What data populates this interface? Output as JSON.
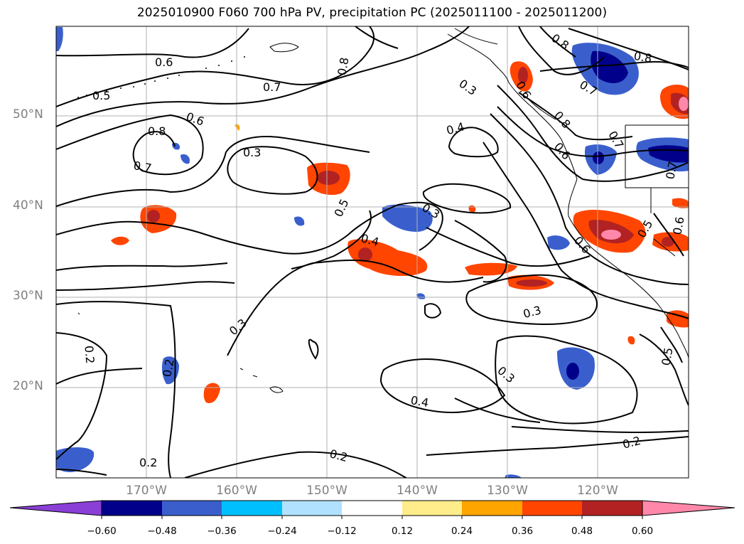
{
  "title": "2025010900 F060 700 hPa PV, precipitation PC (2025011100 - 2025011200)",
  "map": {
    "lat_labels": [
      "50°N",
      "40°N",
      "30°N",
      "20°N"
    ],
    "lon_labels": [
      "170°W",
      "160°W",
      "150°W",
      "140°W",
      "130°W",
      "120°W"
    ],
    "pv_contour_labels": [
      "0.6",
      "0.5",
      "0.7",
      "0.8",
      "0.6",
      "0.8",
      "0.7",
      "0.3",
      "0.8",
      "0.3",
      "0.4",
      "0.5",
      "0.3",
      "0.4",
      "0.8",
      "0.7",
      "0.8",
      "0.6",
      "0.7",
      "0.6",
      "0.6",
      "0.5",
      "0.3",
      "0.2",
      "0.2",
      "0.3",
      "0.3",
      "0.4",
      "0.5",
      "0.2",
      "0.2",
      "0.2",
      "0.7",
      "0.6"
    ]
  },
  "colorbar": {
    "ticks": [
      "−0.60",
      "−0.48",
      "−0.36",
      "−0.24",
      "−0.12",
      "0.12",
      "0.24",
      "0.36",
      "0.48",
      "0.60"
    ],
    "colors": [
      "#8a3fd6",
      "#00008b",
      "#3a5fcd",
      "#00bfff",
      "#b0e2ff",
      "#ffffff",
      "#ffec8b",
      "#ffa500",
      "#ff4500",
      "#b22222",
      "#ff88aa"
    ]
  }
}
